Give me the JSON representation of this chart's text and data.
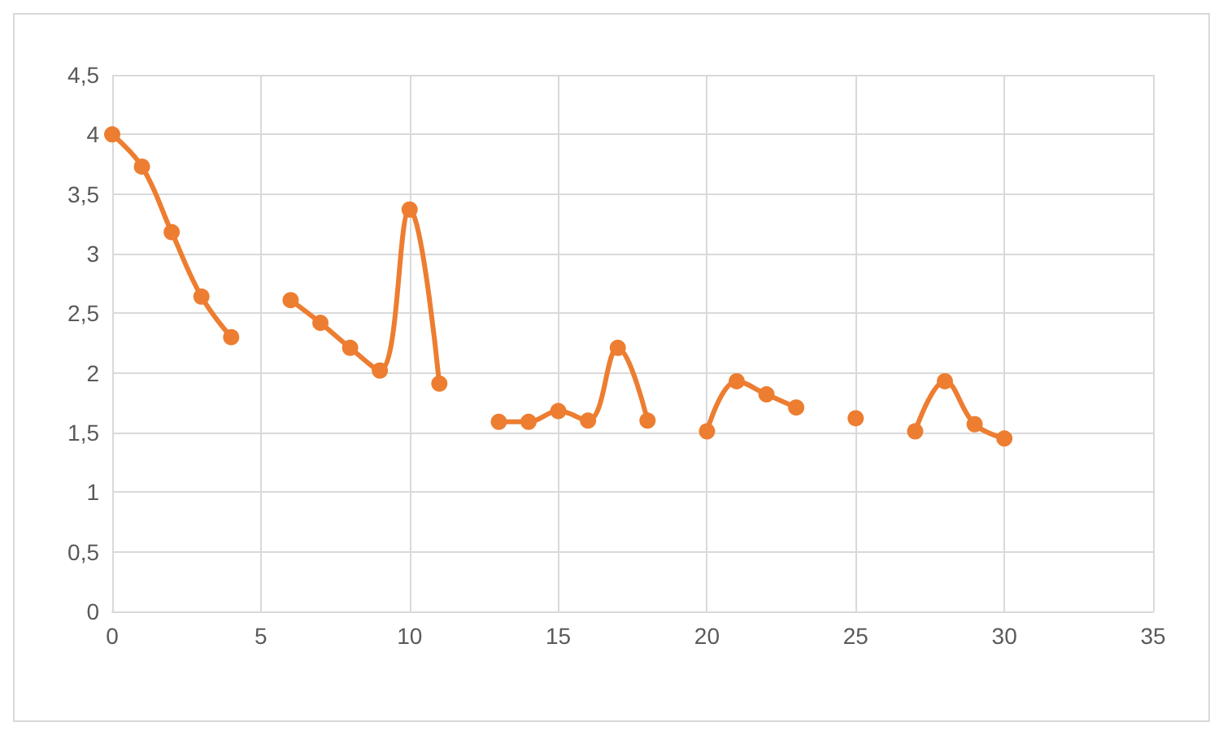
{
  "chart_data": {
    "type": "line",
    "x": [
      0,
      1,
      2,
      3,
      4,
      5,
      6,
      7,
      8,
      9,
      10,
      11,
      12,
      13,
      14,
      15,
      16,
      17,
      18,
      19,
      20,
      21,
      22,
      23,
      24,
      25,
      26,
      27,
      28,
      29,
      30
    ],
    "series": [
      {
        "color": "#ed7d31",
        "values": [
          4.0,
          3.73,
          3.18,
          2.64,
          2.3,
          null,
          2.61,
          2.42,
          2.21,
          2.02,
          3.37,
          1.91,
          null,
          1.59,
          1.59,
          1.68,
          1.6,
          2.21,
          1.6,
          null,
          1.51,
          1.93,
          1.82,
          1.71,
          null,
          1.62,
          null,
          1.51,
          1.93,
          1.57,
          1.45
        ]
      }
    ],
    "xlim": [
      0,
      35
    ],
    "xticks": [
      0,
      5,
      10,
      15,
      20,
      25,
      30,
      35
    ],
    "ylim": [
      0,
      4.5
    ],
    "yticks": [
      0,
      {
        "value": 0.5,
        "label": "0,5"
      },
      1,
      {
        "value": 1.5,
        "label": "1,5"
      },
      2,
      {
        "value": 2.5,
        "label": "2,5"
      },
      3,
      {
        "value": 3.5,
        "label": "3,5"
      },
      4,
      {
        "value": 4.5,
        "label": "4,5"
      }
    ],
    "grid": true,
    "marker": "circle",
    "line_style": "solid"
  }
}
